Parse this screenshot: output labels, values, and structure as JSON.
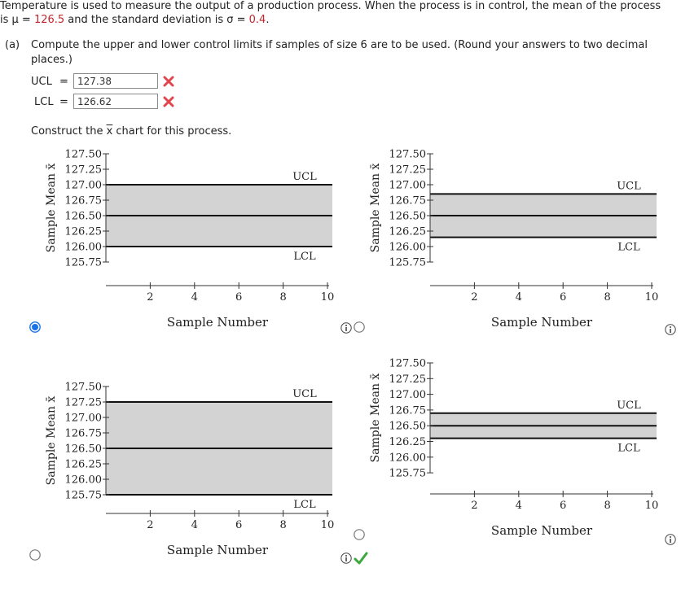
{
  "question": {
    "prefix": "Temperature is used to measure the output of a production process. When the process is in control, the mean of the process",
    "line2_a": "is μ = ",
    "mu": "126.5",
    "line2_b": " and the standard deviation is σ = ",
    "sigma": "0.4",
    "line2_c": "."
  },
  "part_a": {
    "label": "(a)",
    "text1": "Compute the upper and lower control limits if samples of size 6 are to be used. (Round your answers to two decimal",
    "text2": "places.)",
    "ucl_label": "UCL",
    "lcl_label": "LCL",
    "eq": "=",
    "ucl_value": "127.38",
    "lcl_value": "126.62",
    "construct_prefix": "Construct the ",
    "construct_x": "x",
    "construct_suffix": " chart for this process."
  },
  "chart_data": [
    {
      "type": "line",
      "option": 1,
      "selected": true,
      "ylabel": "Sample Mean x̄",
      "xlabel": "Sample Number",
      "yticks": [
        "127.50",
        "127.25",
        "127.00",
        "126.75",
        "126.50",
        "126.25",
        "126.00",
        "125.75"
      ],
      "xticks": [
        "2",
        "4",
        "6",
        "8",
        "10"
      ],
      "ylim": [
        125.75,
        127.5
      ],
      "xlim": [
        0,
        10
      ],
      "ucl": 127.0,
      "center": 126.5,
      "lcl": 126.0,
      "ucl_label": "UCL",
      "lcl_label": "LCL"
    },
    {
      "type": "line",
      "option": 2,
      "selected": false,
      "ylabel": "Sample Mean x̄",
      "xlabel": "Sample Number",
      "yticks": [
        "127.50",
        "127.25",
        "127.00",
        "126.75",
        "126.50",
        "126.25",
        "126.00",
        "125.75"
      ],
      "xticks": [
        "2",
        "4",
        "6",
        "8",
        "10"
      ],
      "ylim": [
        125.75,
        127.5
      ],
      "xlim": [
        0,
        10
      ],
      "ucl": 126.85,
      "center": 126.5,
      "lcl": 126.15,
      "ucl_label": "UCL",
      "lcl_label": "LCL"
    },
    {
      "type": "line",
      "option": 3,
      "selected": false,
      "ylabel": "Sample Mean x̄",
      "xlabel": "Sample Number",
      "yticks": [
        "127.50",
        "127.25",
        "127.00",
        "126.75",
        "126.50",
        "126.25",
        "126.00",
        "125.75"
      ],
      "xticks": [
        "2",
        "4",
        "6",
        "8",
        "10"
      ],
      "ylim": [
        125.75,
        127.5
      ],
      "xlim": [
        0,
        10
      ],
      "ucl": 127.25,
      "center": 126.5,
      "lcl": 125.75,
      "ucl_label": "UCL",
      "lcl_label": "LCL"
    },
    {
      "type": "line",
      "option": 4,
      "selected": false,
      "correct": true,
      "ylabel": "Sample Mean x̄",
      "xlabel": "Sample Number",
      "yticks": [
        "127.50",
        "127.25",
        "127.00",
        "126.75",
        "126.50",
        "126.25",
        "126.00",
        "125.75"
      ],
      "xticks": [
        "2",
        "4",
        "6",
        "8",
        "10"
      ],
      "ylim": [
        125.75,
        127.5
      ],
      "xlim": [
        0,
        10
      ],
      "ucl": 126.7,
      "center": 126.5,
      "lcl": 126.3,
      "ucl_label": "UCL",
      "lcl_label": "LCL"
    }
  ],
  "icons": {
    "info": "info-icon",
    "wrong": "x-mark-icon",
    "correct": "check-mark-icon"
  },
  "colors": {
    "band": "#d3d3d3",
    "wrong": "#e0464b",
    "correct": "#3aa83a",
    "radio_selected": "#1a73e8",
    "value_red": "#c0262d"
  }
}
